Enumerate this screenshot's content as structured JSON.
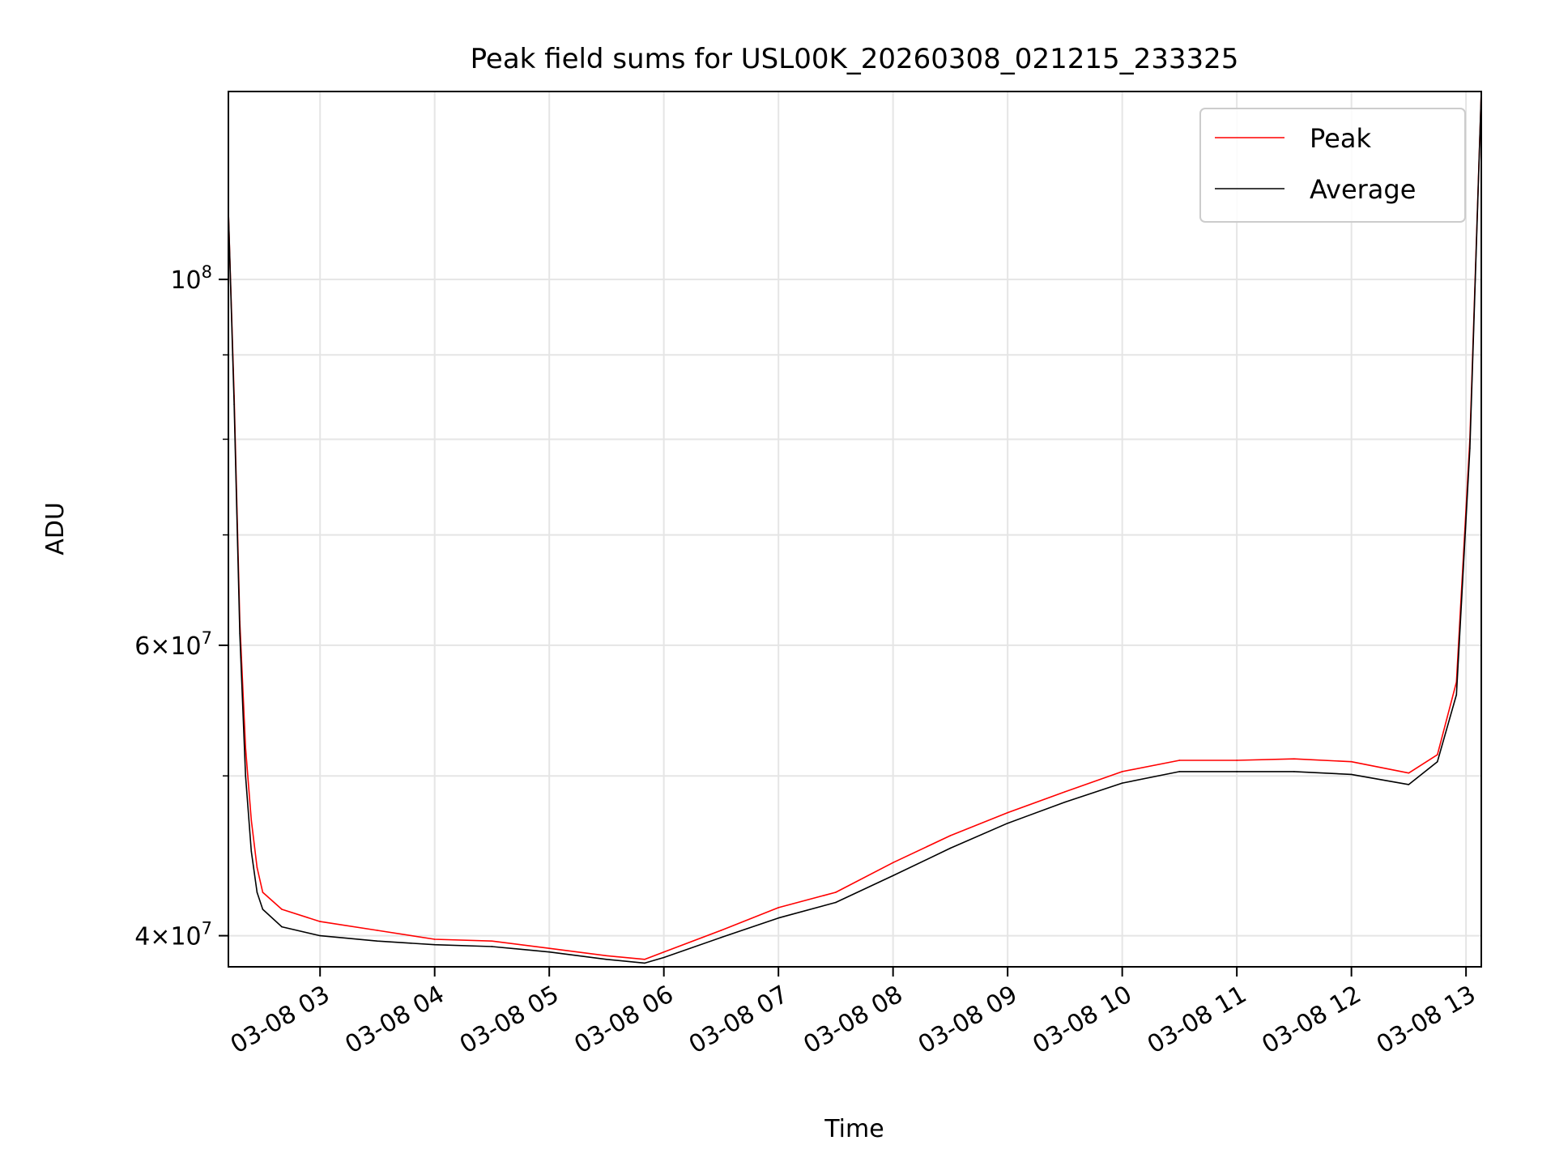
{
  "chart_data": {
    "type": "line",
    "title": "Peak field sums for USL00K_20260308_021215_233325",
    "xlabel": "Time",
    "ylabel": "ADU",
    "yscale": "log",
    "grid": true,
    "legend_position": "top-right",
    "xlim": [
      "2026-03-08 02:12",
      "2026-03-08 13:08"
    ],
    "ylim": [
      38300000,
      130000000
    ],
    "x_ticks": [
      "2026-03-08 03:00",
      "2026-03-08 04:00",
      "2026-03-08 05:00",
      "2026-03-08 06:00",
      "2026-03-08 07:00",
      "2026-03-08 08:00",
      "2026-03-08 09:00",
      "2026-03-08 10:00",
      "2026-03-08 11:00",
      "2026-03-08 12:00",
      "2026-03-08 13:00"
    ],
    "x_tick_labels": [
      "03-08 03",
      "03-08 04",
      "03-08 05",
      "03-08 06",
      "03-08 07",
      "03-08 08",
      "03-08 09",
      "03-08 10",
      "03-08 11",
      "03-08 12",
      "03-08 13"
    ],
    "y_ticks": [
      {
        "value": 40000000,
        "mantissa": "4",
        "exponent": "7"
      },
      {
        "value": 60000000,
        "mantissa": "6",
        "exponent": "7"
      },
      {
        "value": 100000000,
        "mantissa": "",
        "exponent": "8"
      }
    ],
    "y_minor_ticks": [
      50000000,
      70000000,
      80000000,
      90000000
    ],
    "series": [
      {
        "name": "Peak",
        "color": "#ff0000",
        "x": [
          "2026-03-08 02:12",
          "2026-03-08 02:15",
          "2026-03-08 02:18",
          "2026-03-08 02:21",
          "2026-03-08 02:24",
          "2026-03-08 02:27",
          "2026-03-08 02:30",
          "2026-03-08 02:40",
          "2026-03-08 03:00",
          "2026-03-08 03:30",
          "2026-03-08 04:00",
          "2026-03-08 04:30",
          "2026-03-08 05:00",
          "2026-03-08 05:30",
          "2026-03-08 05:50",
          "2026-03-08 06:00",
          "2026-03-08 06:30",
          "2026-03-08 07:00",
          "2026-03-08 07:30",
          "2026-03-08 08:00",
          "2026-03-08 08:30",
          "2026-03-08 09:00",
          "2026-03-08 09:30",
          "2026-03-08 10:00",
          "2026-03-08 10:30",
          "2026-03-08 11:00",
          "2026-03-08 11:30",
          "2026-03-08 12:00",
          "2026-03-08 12:30",
          "2026-03-08 12:45",
          "2026-03-08 12:55",
          "2026-03-08 13:02",
          "2026-03-08 13:08"
        ],
        "y": [
          110000000,
          85000000,
          62000000,
          52000000,
          47000000,
          44000000,
          42500000,
          41500000,
          40800000,
          40300000,
          39800000,
          39700000,
          39300000,
          38900000,
          38700000,
          39100000,
          40300000,
          41600000,
          42500000,
          44300000,
          46000000,
          47500000,
          48900000,
          50300000,
          51100000,
          51100000,
          51200000,
          51000000,
          50200000,
          51500000,
          57000000,
          80000000,
          130000000
        ]
      },
      {
        "name": "Average",
        "color": "#000000",
        "x": [
          "2026-03-08 02:12",
          "2026-03-08 02:15",
          "2026-03-08 02:18",
          "2026-03-08 02:21",
          "2026-03-08 02:24",
          "2026-03-08 02:27",
          "2026-03-08 02:30",
          "2026-03-08 02:40",
          "2026-03-08 03:00",
          "2026-03-08 03:30",
          "2026-03-08 04:00",
          "2026-03-08 04:30",
          "2026-03-08 05:00",
          "2026-03-08 05:30",
          "2026-03-08 05:50",
          "2026-03-08 06:00",
          "2026-03-08 06:30",
          "2026-03-08 07:00",
          "2026-03-08 07:30",
          "2026-03-08 08:00",
          "2026-03-08 08:30",
          "2026-03-08 09:00",
          "2026-03-08 09:30",
          "2026-03-08 10:00",
          "2026-03-08 10:30",
          "2026-03-08 11:00",
          "2026-03-08 11:30",
          "2026-03-08 12:00",
          "2026-03-08 12:30",
          "2026-03-08 12:45",
          "2026-03-08 12:55",
          "2026-03-08 13:02",
          "2026-03-08 13:08"
        ],
        "y": [
          110000000,
          84000000,
          61000000,
          50000000,
          45000000,
          42500000,
          41500000,
          40500000,
          40000000,
          39700000,
          39500000,
          39400000,
          39100000,
          38700000,
          38500000,
          38800000,
          39900000,
          41000000,
          41900000,
          43500000,
          45200000,
          46800000,
          48200000,
          49500000,
          50300000,
          50300000,
          50300000,
          50100000,
          49400000,
          51000000,
          56000000,
          79000000,
          130000000
        ]
      }
    ]
  }
}
